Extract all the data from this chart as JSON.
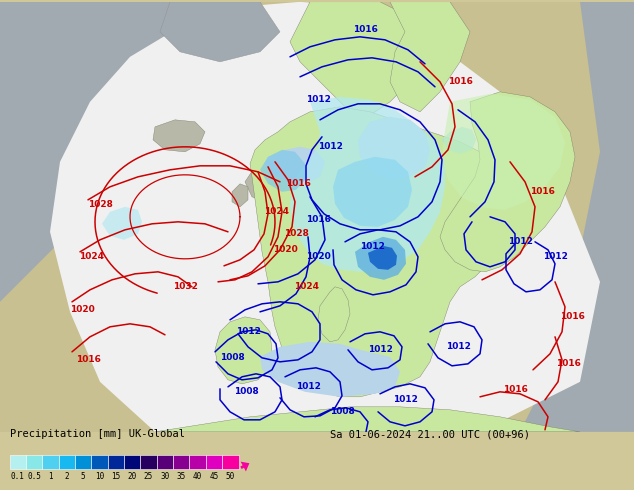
{
  "title_left": "Precipitation [mm] UK-Global",
  "title_right": "Sa 01-06-2024 21..00 UTC (00+96)",
  "colorbar_labels": [
    "0.1",
    "0.5",
    "1",
    "2",
    "5",
    "10",
    "15",
    "20",
    "25",
    "30",
    "35",
    "40",
    "45",
    "50"
  ],
  "colorbar_colors": [
    "#b4f0f0",
    "#88e8e8",
    "#50d0f0",
    "#18b8f0",
    "#0090d8",
    "#0058b8",
    "#002898",
    "#000878",
    "#280060",
    "#580078",
    "#880090",
    "#b800a8",
    "#e000c0",
    "#f800a0"
  ],
  "fig_bg": "#d0c898",
  "sea_color": "#a0aab0",
  "land_color": "#c8c090",
  "wedge_color": "#f0f0f0",
  "precip_light_color": "#c0f0f0",
  "precip_med_color": "#80d0f0",
  "precip_dark_color": "#2060c8",
  "green_land_color": "#c8e8a0",
  "fig_width": 6.34,
  "fig_height": 4.9,
  "dpi": 100
}
